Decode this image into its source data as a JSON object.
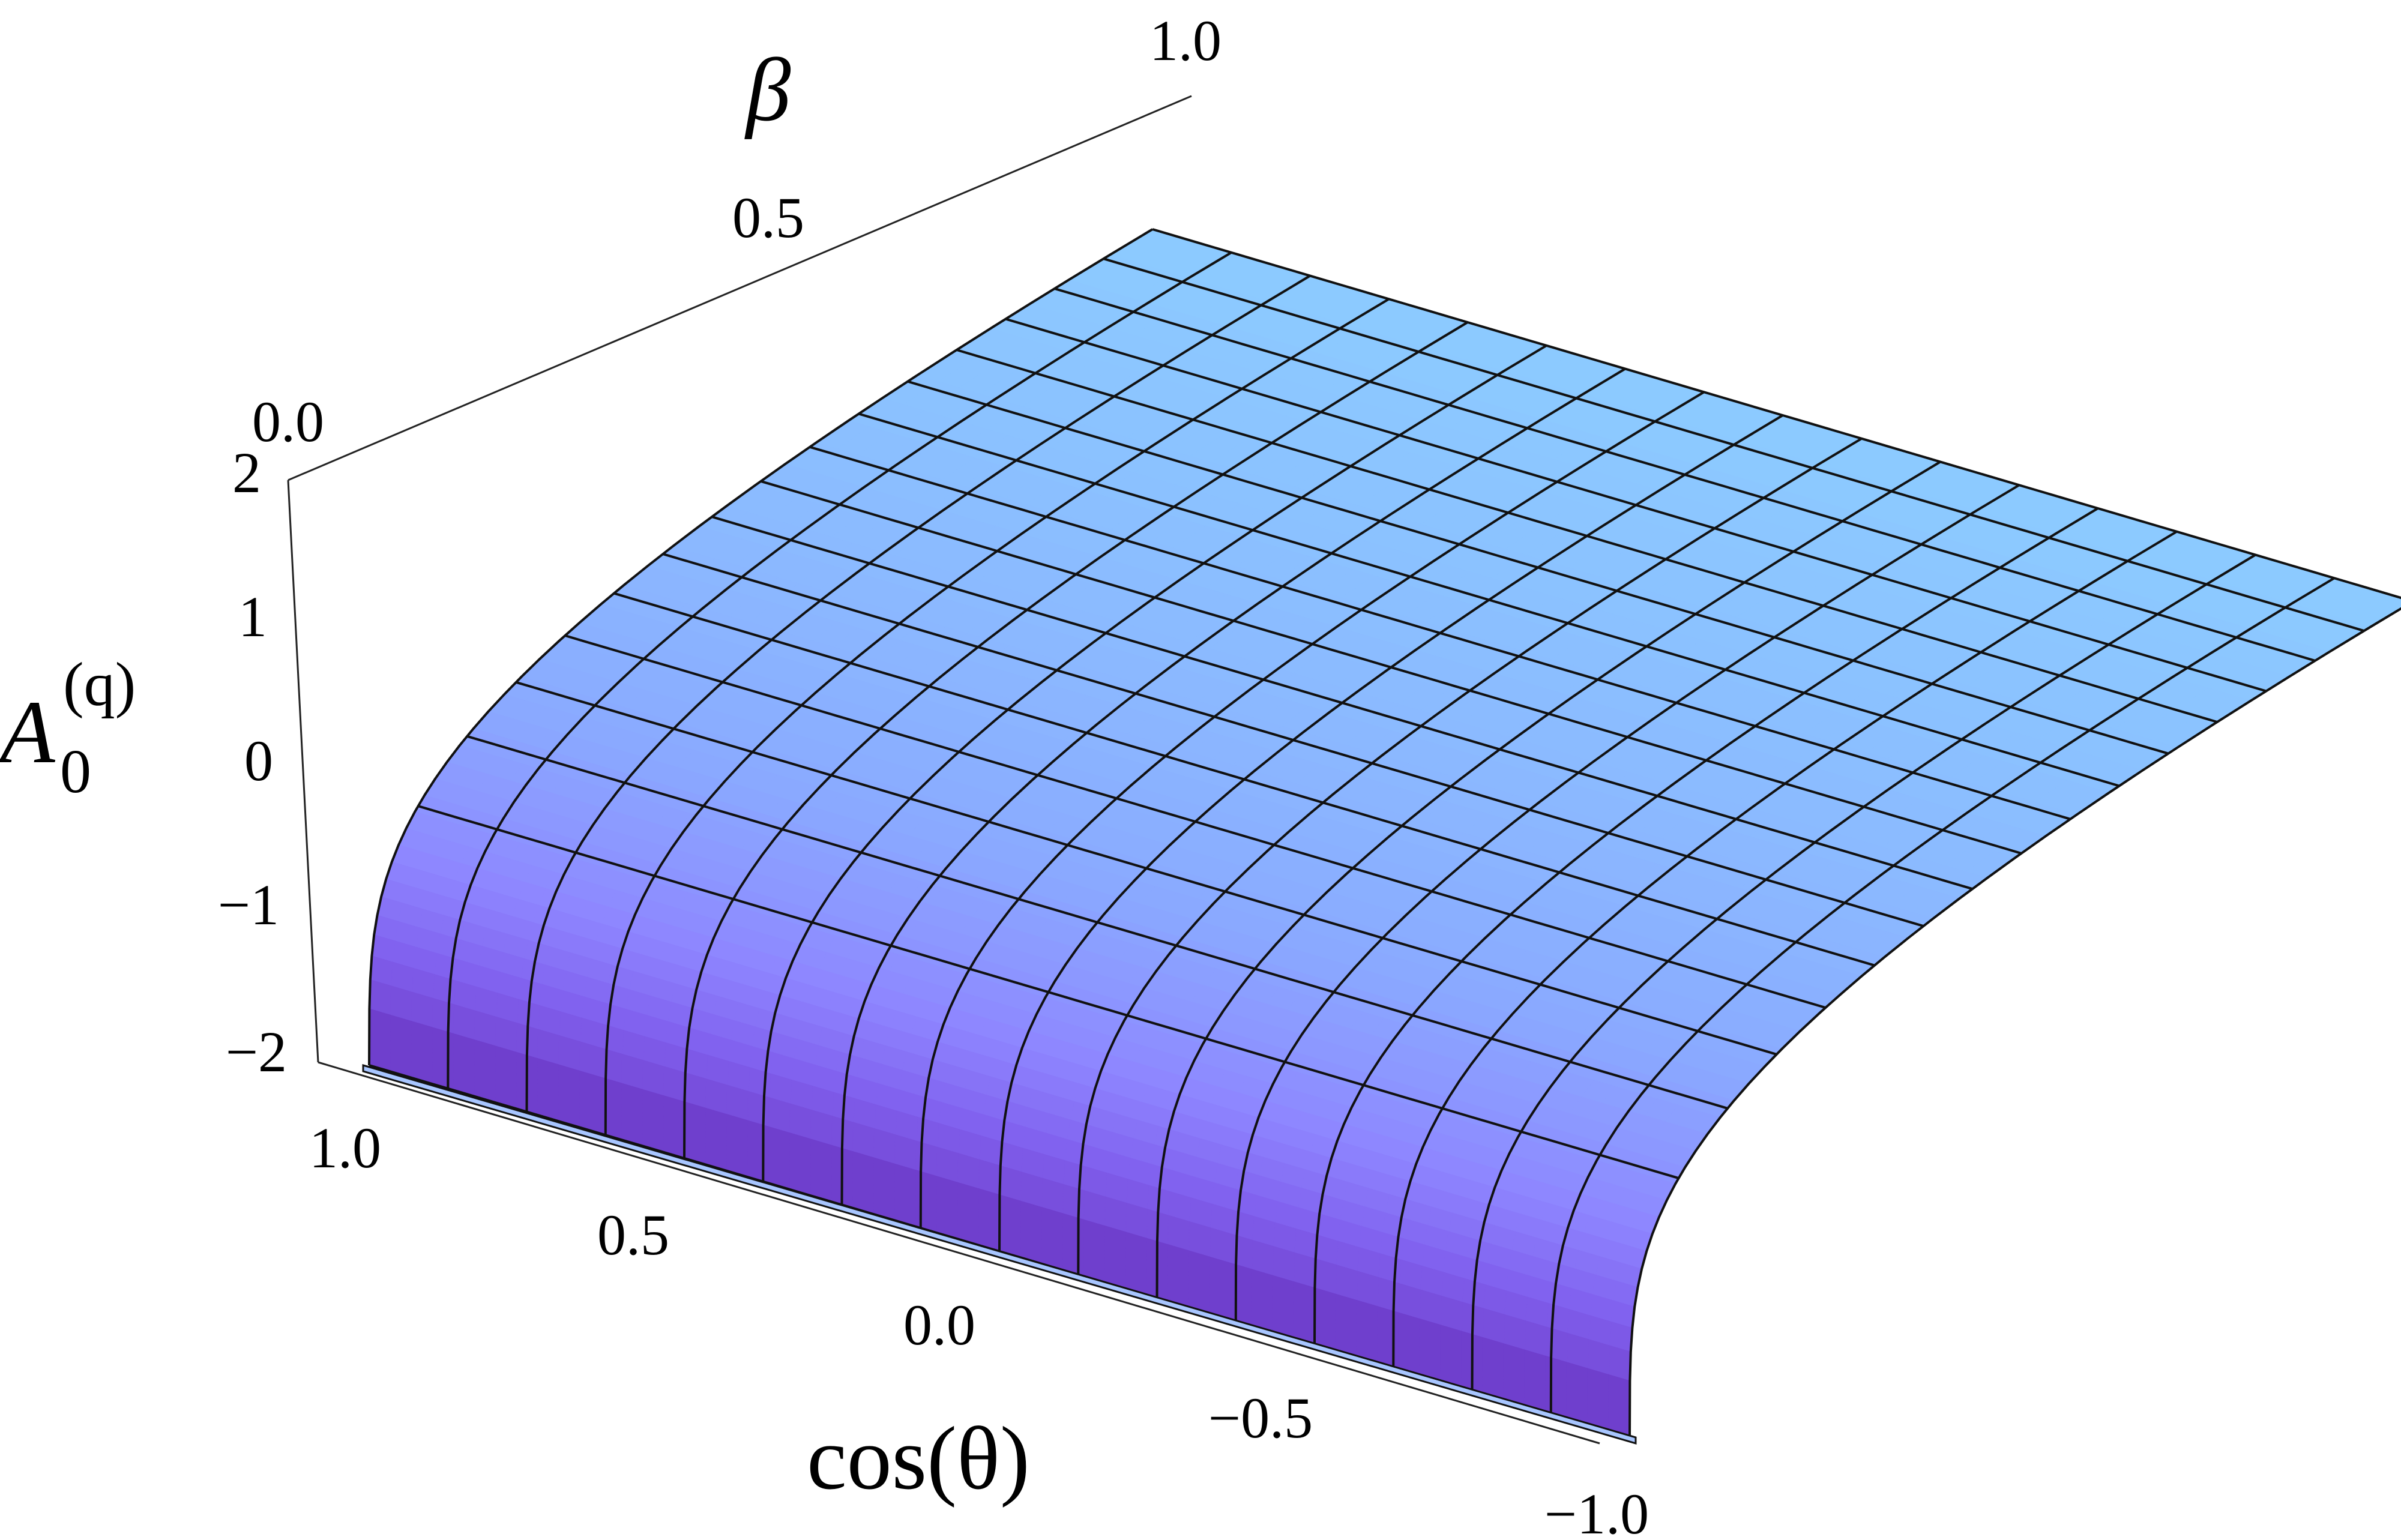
{
  "chart_data": {
    "type": "surface",
    "x_axis": {
      "label": "cos(θ)",
      "range": [
        -1.0,
        1.0
      ],
      "ticks": [
        "1.0",
        "0.5",
        "0.0",
        "−0.5",
        "−1.0"
      ],
      "tick_values": [
        1.0,
        0.5,
        0.0,
        -0.5,
        -1.0
      ]
    },
    "y_axis": {
      "label": "β",
      "range": [
        0.0,
        1.0
      ],
      "ticks": [
        "0.0",
        "0.5",
        "1.0"
      ],
      "tick_values": [
        0.0,
        0.5,
        1.0
      ]
    },
    "z_axis": {
      "label_main": "A",
      "label_sub": "0",
      "label_sup": "(q)",
      "range": [
        -2,
        2
      ],
      "ticks": [
        "2",
        "1",
        "0",
        "−1",
        "−2"
      ],
      "tick_values": [
        2,
        1,
        0,
        -1,
        -2
      ]
    },
    "grid_lines_per_axis": 16,
    "description_of_shape": "A rises steeply from about -2 at β=0 to a plateau near 1.5 as β → 1, nearly independent of cos(θ)",
    "colors": {
      "surface_top": "#8cc8ff",
      "surface_mid": "#8f8cff",
      "surface_bottom": "#6a35c4",
      "mesh": "#111111"
    }
  }
}
